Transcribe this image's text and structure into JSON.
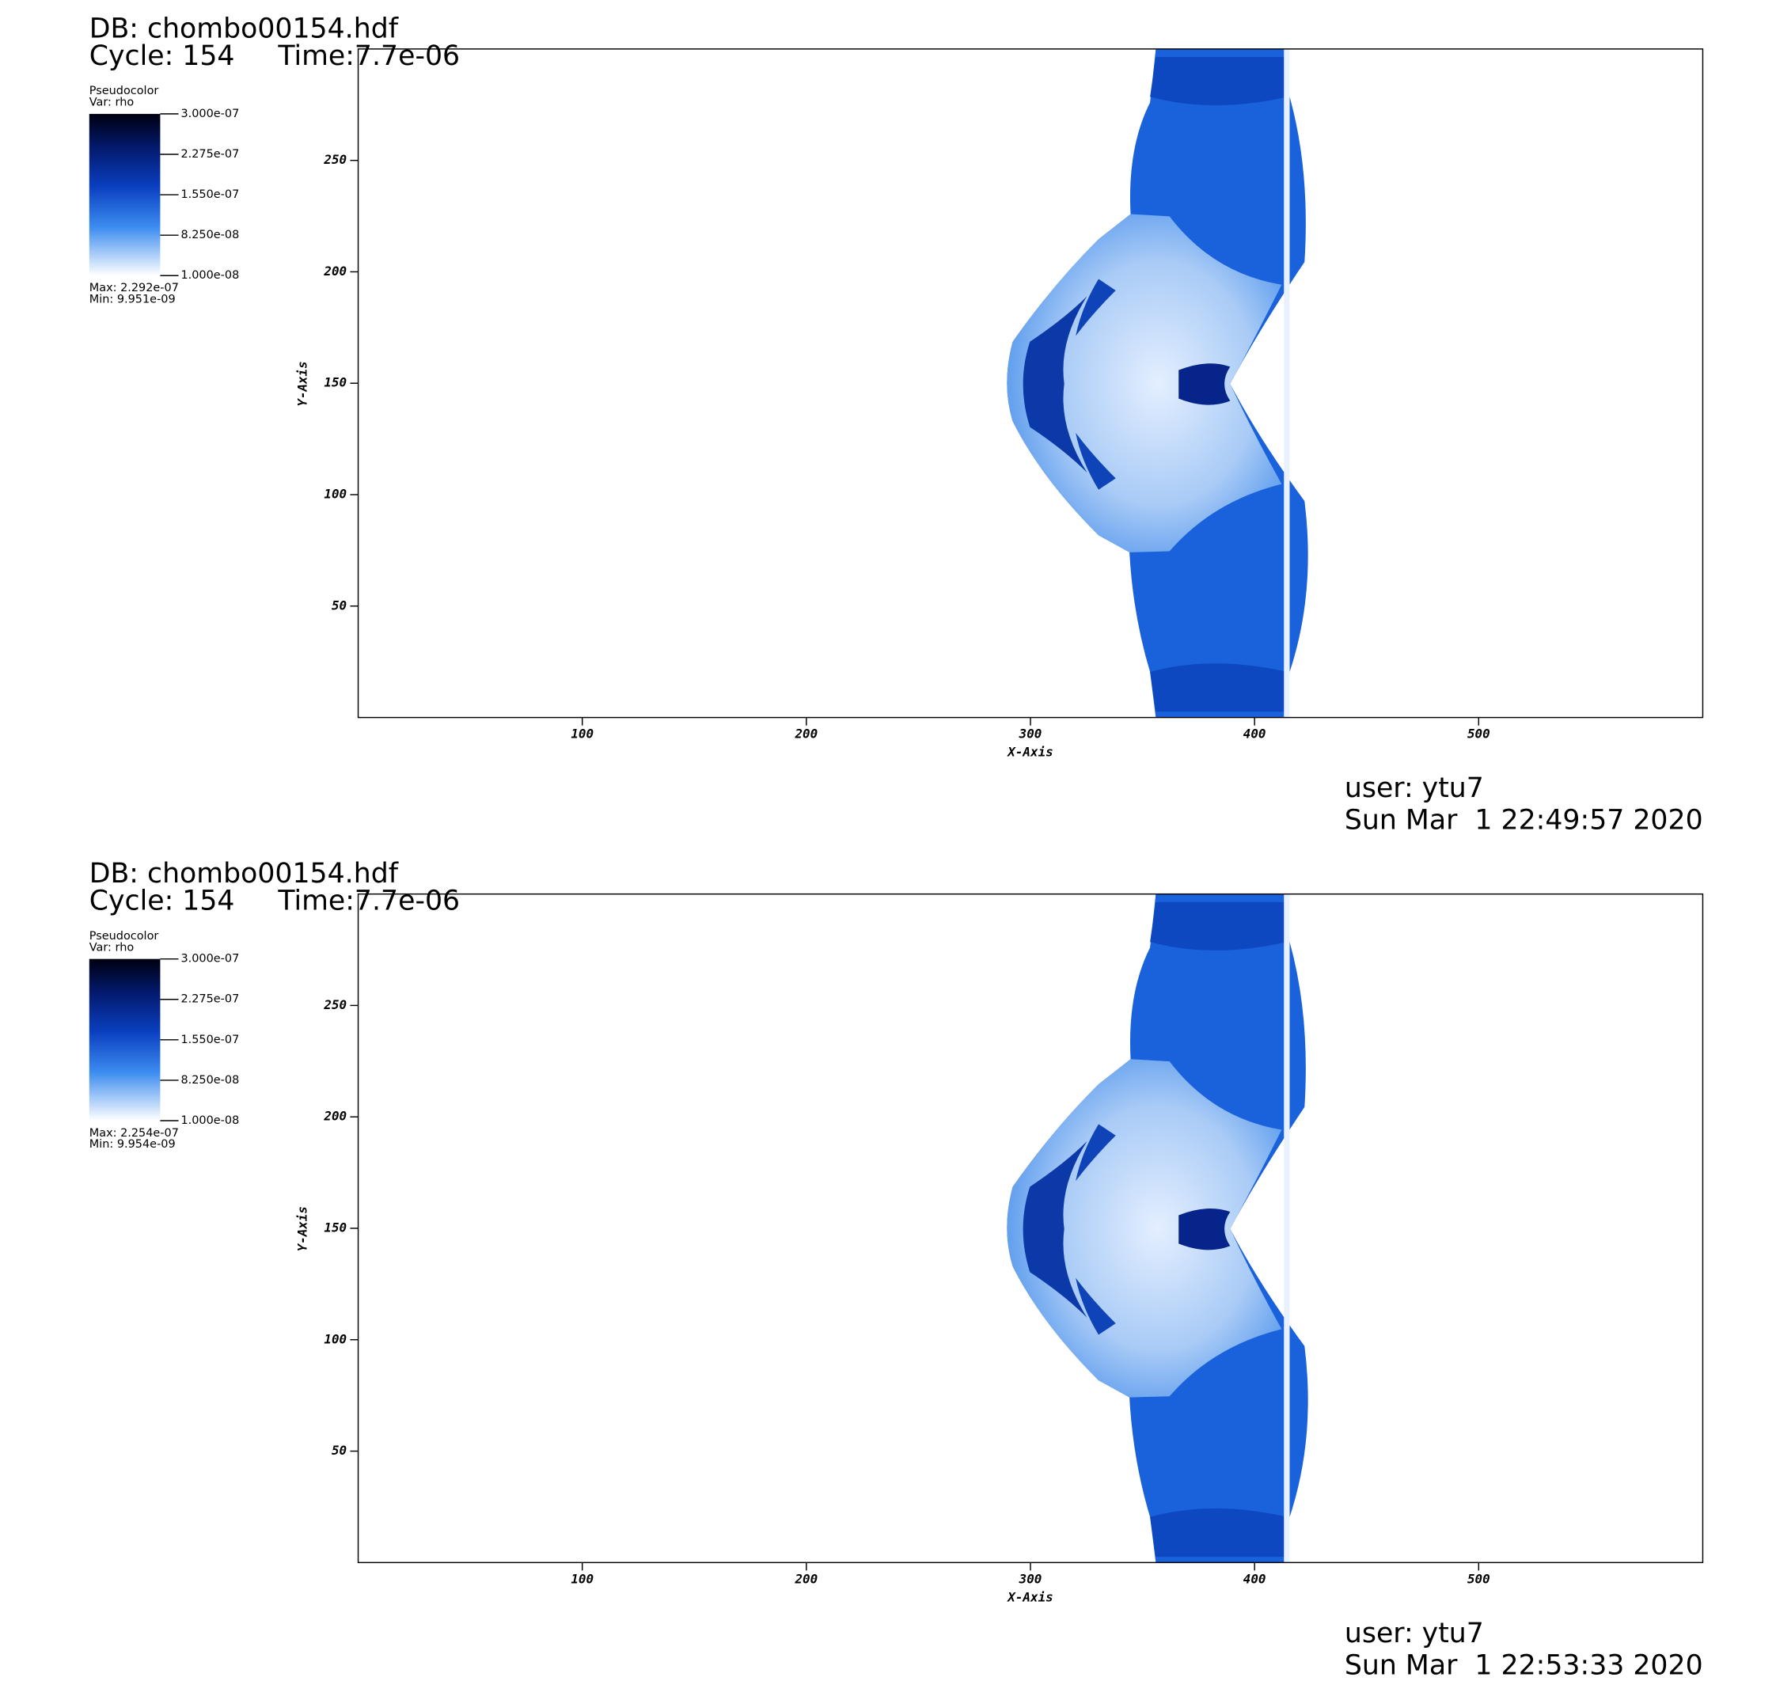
{
  "panels": [
    {
      "db": "DB: chombo00154.hdf",
      "cycle": "Cycle: 154",
      "time": "Time:7.7e-06",
      "legend": {
        "plot": "Pseudocolor",
        "var": "Var: rho",
        "lim": [
          1e-08,
          3e-07
        ],
        "ticks": [
          {
            "value": 3e-07,
            "label": "3.000e-07"
          },
          {
            "value": 2.275e-07,
            "label": "2.275e-07"
          },
          {
            "value": 1.55e-07,
            "label": "1.550e-07"
          },
          {
            "value": 8.25e-08,
            "label": "8.250e-08"
          },
          {
            "value": 1e-08,
            "label": "1.000e-08"
          }
        ],
        "max": "Max: 2.292e-07",
        "min": "Min: 9.951e-09"
      },
      "x_label": "X-Axis",
      "y_label": "Y-Axis",
      "xlim": [
        0,
        600
      ],
      "ylim": [
        0,
        300
      ],
      "xticks": [
        100,
        200,
        300,
        400,
        500
      ],
      "yticks": [
        50,
        100,
        150,
        200,
        250
      ],
      "user": "user: ytu7",
      "date": "Sun Mar  1 22:49:57 2020"
    },
    {
      "db": "DB: chombo00154.hdf",
      "cycle": "Cycle: 154",
      "time": "Time:7.7e-06",
      "legend": {
        "plot": "Pseudocolor",
        "var": "Var: rho",
        "lim": [
          1e-08,
          3e-07
        ],
        "ticks": [
          {
            "value": 3e-07,
            "label": "3.000e-07"
          },
          {
            "value": 2.275e-07,
            "label": "2.275e-07"
          },
          {
            "value": 1.55e-07,
            "label": "1.550e-07"
          },
          {
            "value": 8.25e-08,
            "label": "8.250e-08"
          },
          {
            "value": 1e-08,
            "label": "1.000e-08"
          }
        ],
        "max": "Max: 2.254e-07",
        "min": "Min: 9.954e-09"
      },
      "x_label": "X-Axis",
      "y_label": "Y-Axis",
      "xlim": [
        0,
        600
      ],
      "ylim": [
        0,
        300
      ],
      "xticks": [
        100,
        200,
        300,
        400,
        500
      ],
      "yticks": [
        50,
        100,
        150,
        200,
        250
      ],
      "user": "user: ytu7",
      "date": "Sun Mar  1 22:53:33 2020"
    }
  ]
}
